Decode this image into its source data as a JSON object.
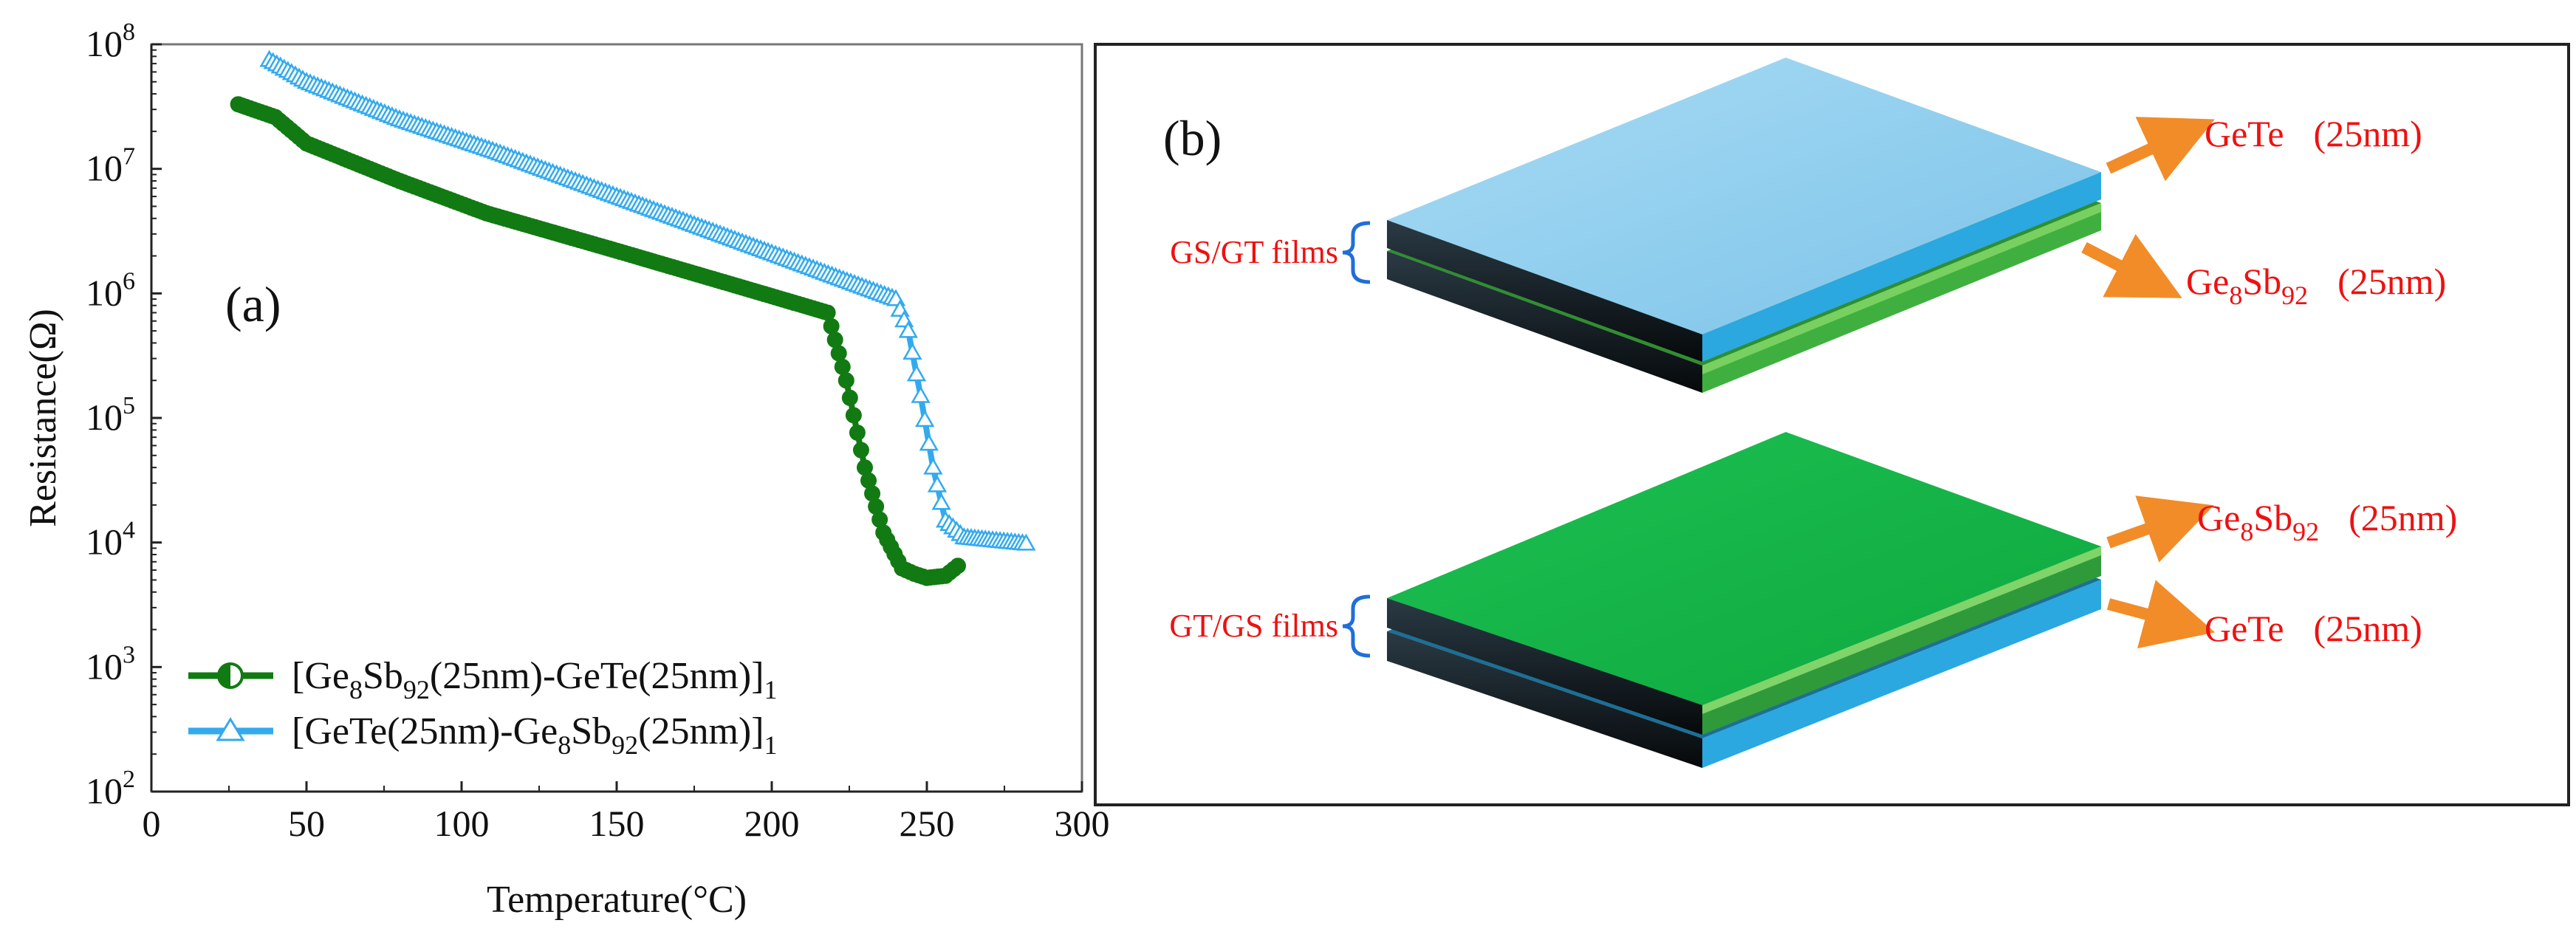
{
  "panel_a": {
    "label": "(a)",
    "chart_data": {
      "type": "line",
      "title": "",
      "xlabel": "Temperature(°C)",
      "ylabel": "Resistance(Ω)",
      "xlim": [
        0,
        300
      ],
      "ylim_log10": [
        2,
        8
      ],
      "y_scale": "log",
      "x_ticks": [
        0,
        50,
        100,
        150,
        200,
        250,
        300
      ],
      "x_tick_labels": [
        "0",
        "50",
        "100",
        "150",
        "200",
        "250",
        "300"
      ],
      "y_ticks_log10": [
        2,
        3,
        4,
        5,
        6,
        7,
        8
      ],
      "y_tick_base": "10",
      "y_tick_exponents": [
        "2",
        "3",
        "4",
        "5",
        "6",
        "7",
        "8"
      ],
      "legend_position": "bottom-left",
      "series": [
        {
          "name": "[Ge8Sb92(25nm)-GeTe(25nm)]1",
          "legend_parts": {
            "open": "[",
            "p1": "Ge",
            "s1": "8",
            "p2": "Sb",
            "s2": "92",
            "p3": "(25nm)-GeTe(25nm)",
            "close": "]",
            "s3": "1"
          },
          "color": "#127a12",
          "marker": "half-filled-circle",
          "x": [
            28,
            40,
            50,
            80,
            108,
            150,
            200,
            218,
            224,
            230,
            236,
            242,
            246,
            250,
            256,
            260
          ],
          "y": [
            33000000,
            26000000,
            16000000,
            8000000,
            4400000,
            2200000,
            950000,
            700000,
            200000,
            40000,
            12000,
            6200,
            5600,
            5200,
            5400,
            6500
          ]
        },
        {
          "name": "[GeTe(25nm)-Ge8Sb92(25nm)]1",
          "legend_parts": {
            "open": "[",
            "p1": "GeTe(25nm)-Ge",
            "s1": "8",
            "p2": "Sb",
            "s2": "92",
            "p3": "(25nm)",
            "close": "]",
            "s3": "1"
          },
          "color": "#33aaee",
          "marker": "triangle",
          "x": [
            38,
            50,
            80,
            110,
            150,
            200,
            240,
            244,
            248,
            252,
            256,
            262,
            270,
            282
          ],
          "y": [
            75000000,
            50000000,
            25000000,
            14000000,
            6000000,
            2100000,
            900000,
            500000,
            150000,
            40000,
            15000,
            11000,
            10500,
            9800
          ]
        }
      ]
    }
  },
  "panel_b": {
    "label": "(b)",
    "stack_top": {
      "caption": "GS/GT films",
      "upper_layer": {
        "name": "GeTe",
        "thickness": "(25nm)",
        "color": "#8ecfee"
      },
      "lower_layer": {
        "p1": "Ge",
        "s1": "8",
        "p2": "Sb",
        "s2": "92",
        "thickness": "(25nm)",
        "color": "#3fb03f"
      }
    },
    "stack_bottom": {
      "caption": "GT/GS films",
      "upper_layer": {
        "p1": "Ge",
        "s1": "8",
        "p2": "Sb",
        "s2": "92",
        "thickness": "(25nm)",
        "color": "#13b54a"
      },
      "lower_layer": {
        "name": "GeTe",
        "thickness": "(25nm)",
        "color": "#2ba8df"
      }
    },
    "colors": {
      "arrow": "#f28c28",
      "label_text": "#ee1111",
      "bracket": "#1f6fd6"
    }
  }
}
